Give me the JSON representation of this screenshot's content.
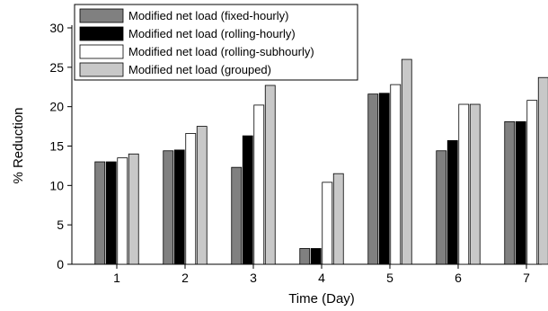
{
  "chart_data": {
    "type": "bar",
    "xlabel": "Time (Day)",
    "ylabel": "% Reduction",
    "categories": [
      "1",
      "2",
      "3",
      "4",
      "5",
      "6",
      "7"
    ],
    "ylim": [
      0,
      30
    ],
    "yticks": [
      0,
      5,
      10,
      15,
      20,
      25,
      30
    ],
    "grid": false,
    "legend_position": "top-left",
    "series": [
      {
        "name": "Modified net load (fixed-hourly)",
        "color": "#808080",
        "values": [
          13.0,
          14.4,
          12.3,
          2.0,
          21.6,
          14.4,
          18.1
        ]
      },
      {
        "name": "Modified net load (rolling-hourly)",
        "color": "#000000",
        "values": [
          13.0,
          14.5,
          16.3,
          2.0,
          21.7,
          15.7,
          18.1
        ]
      },
      {
        "name": "Modified net load (rolling-subhourly)",
        "color": "#ffffff",
        "values": [
          13.5,
          16.6,
          20.2,
          10.4,
          22.8,
          20.3,
          20.8
        ]
      },
      {
        "name": "Modified net load (grouped)",
        "color": "#c8c8c8",
        "values": [
          14.0,
          17.5,
          22.7,
          11.5,
          26.0,
          20.3,
          23.7
        ]
      }
    ]
  }
}
